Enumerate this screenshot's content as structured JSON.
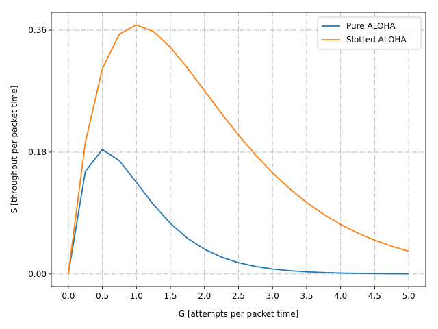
{
  "chart_data": {
    "type": "line",
    "title": "",
    "xlabel": "G [attempts per packet time]",
    "ylabel": "S [throughput per packet time]",
    "xlim": [
      -0.25,
      5.25
    ],
    "ylim": [
      -0.0184,
      0.3864
    ],
    "x_ticks": [
      0.0,
      0.5,
      1.0,
      1.5,
      2.0,
      2.5,
      3.0,
      3.5,
      4.0,
      4.5,
      5.0
    ],
    "x_tick_labels": [
      "0.0",
      "0.5",
      "1.0",
      "1.5",
      "2.0",
      "2.5",
      "3.0",
      "3.5",
      "4.0",
      "4.5",
      "5.0"
    ],
    "y_ticks": [
      0.0,
      0.18,
      0.36
    ],
    "y_tick_labels": [
      "0.00",
      "0.18",
      "0.36"
    ],
    "grid": true,
    "legend_position": "top-right",
    "x": [
      0.0,
      0.25,
      0.5,
      0.75,
      1.0,
      1.25,
      1.5,
      1.75,
      2.0,
      2.25,
      2.5,
      2.75,
      3.0,
      3.25,
      3.5,
      3.75,
      4.0,
      4.25,
      4.5,
      4.75,
      5.0
    ],
    "series": [
      {
        "name": "Pure ALOHA",
        "color": "#1f77b4",
        "values": [
          0.0,
          0.1516,
          0.1839,
          0.1673,
          0.1353,
          0.1026,
          0.0747,
          0.0528,
          0.0366,
          0.025,
          0.0168,
          0.0112,
          0.0074,
          0.0049,
          0.0032,
          0.0021,
          0.0013,
          0.0009,
          0.0006,
          0.0004,
          0.0002
        ]
      },
      {
        "name": "Slotted ALOHA",
        "color": "#ff7f0e",
        "values": [
          0.0,
          0.1947,
          0.3033,
          0.3543,
          0.3679,
          0.3581,
          0.3347,
          0.3041,
          0.2707,
          0.2371,
          0.2052,
          0.1759,
          0.1494,
          0.126,
          0.1057,
          0.0882,
          0.0733,
          0.0606,
          0.05,
          0.0411,
          0.0337
        ]
      }
    ]
  }
}
